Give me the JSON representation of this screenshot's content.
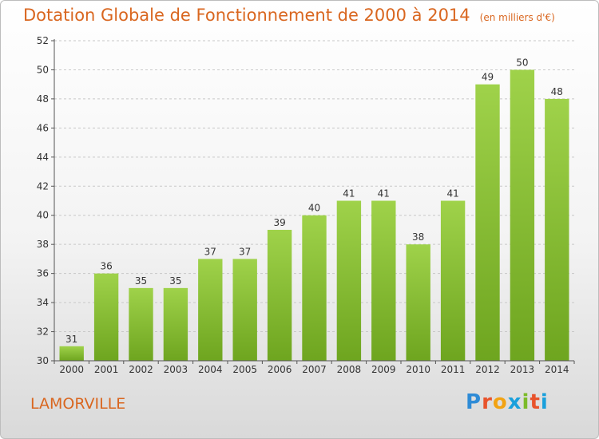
{
  "title": "Dotation Globale de Fonctionnement de 2000 à 2014",
  "unit_note": "(en milliers d'€)",
  "commune": "LAMORVILLE",
  "logo": {
    "letters": [
      "P",
      "r",
      "o",
      "x",
      "i",
      "t",
      "i"
    ],
    "colors": [
      "#2e8bd6",
      "#e8532c",
      "#f2a313",
      "#1aa0dc",
      "#7cbb2a",
      "#e8532c",
      "#1aa0dc"
    ]
  },
  "colors": {
    "bar_light": "#9fd24a",
    "bar_dark": "#6ea51f",
    "title": "#d9661f",
    "axis": "#555555",
    "grid": "#c8c8c8"
  },
  "chart_data": {
    "type": "bar",
    "title": "Dotation Globale de Fonctionnement de 2000 à 2014",
    "xlabel": "",
    "ylabel": "",
    "categories": [
      "2000",
      "2001",
      "2002",
      "2003",
      "2004",
      "2005",
      "2006",
      "2007",
      "2008",
      "2009",
      "2010",
      "2011",
      "2012",
      "2013",
      "2014"
    ],
    "values": [
      31,
      36,
      35,
      35,
      37,
      37,
      39,
      40,
      41,
      41,
      38,
      41,
      49,
      50,
      48
    ],
    "ylim": [
      30,
      52
    ],
    "yticks": [
      30,
      32,
      34,
      36,
      38,
      40,
      42,
      44,
      46,
      48,
      50,
      52
    ],
    "grid": "horizontal dashed"
  }
}
